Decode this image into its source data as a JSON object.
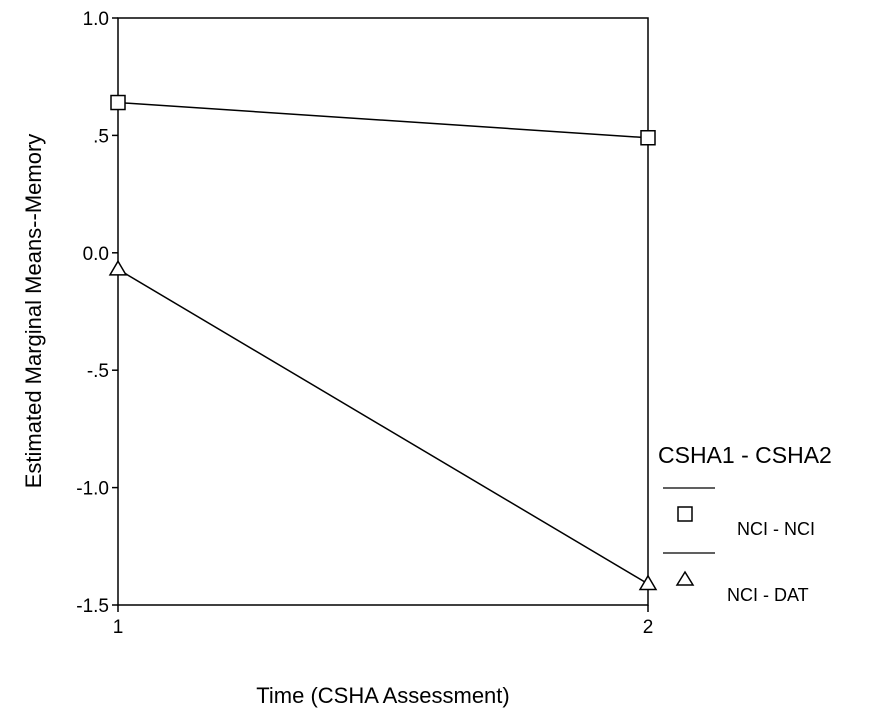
{
  "chart_data": {
    "type": "line",
    "xlabel": "Time (CSHA Assessment)",
    "ylabel": "Estimated Marginal Means--Memory",
    "x": [
      1,
      2
    ],
    "x_tick_labels": [
      "1",
      "2"
    ],
    "ylim": [
      -1.5,
      1.0
    ],
    "y_ticks": [
      1.0,
      0.5,
      0.0,
      -0.5,
      -1.0,
      -1.5
    ],
    "y_tick_labels": [
      "1.0",
      ".5",
      "0.0",
      "-.5",
      "-1.0",
      "-1.5"
    ],
    "grid": false,
    "legend": {
      "title": "CSHA1 - CSHA2",
      "placement": "right"
    },
    "series": [
      {
        "name": "NCI - NCI",
        "marker": "square",
        "values": [
          0.64,
          0.49
        ]
      },
      {
        "name": "NCI - DAT",
        "marker": "triangle",
        "values": [
          -0.07,
          -1.41
        ]
      }
    ]
  }
}
